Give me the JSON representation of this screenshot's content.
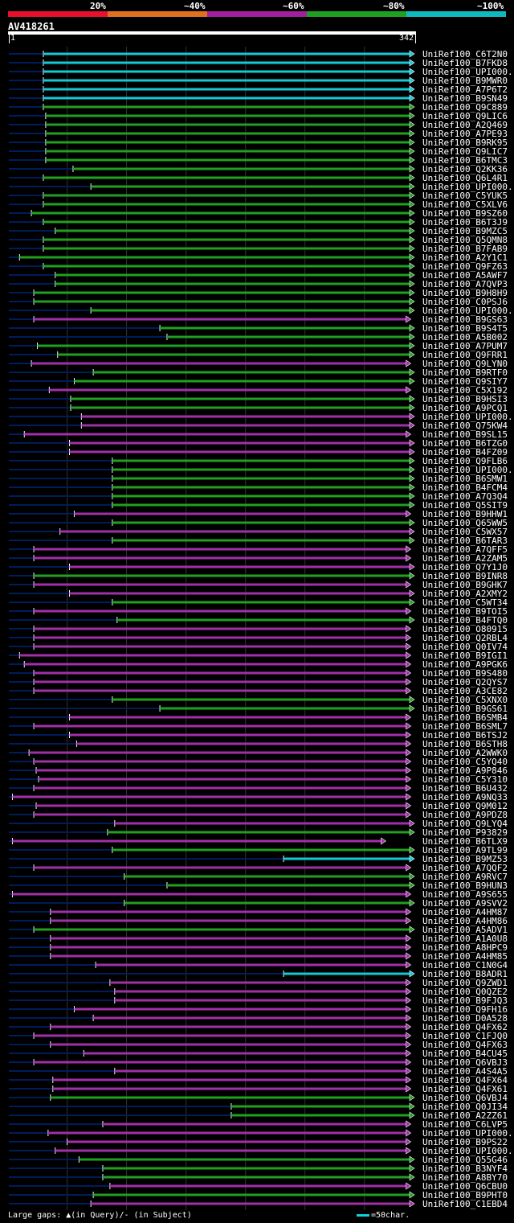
{
  "header": {
    "legend_ticks": [
      "20%",
      "~40%",
      "~60%",
      "~80%",
      "~100%"
    ],
    "legend_colors": [
      "#e8102c",
      "#e07020",
      "#a020a0",
      "#20a020",
      "#10b8c0"
    ],
    "query_id": "AV418261",
    "ruler_start": "1",
    "ruler_end": "342"
  },
  "footer": {
    "gaps_text": "Large gaps: ▲(in Query)/- (in Subject)",
    "scale_text": "=50char."
  },
  "colors": {
    "cyan": "#14c8d4",
    "green": "#20a020",
    "magenta": "#a030a8",
    "gridline": "#333333",
    "prefix": "#001c5a"
  },
  "chart_data": {
    "type": "alignment-overview",
    "query_length": 342,
    "hits": [
      {
        "label": "UniRef100_C6T2N0",
        "start": 30,
        "end": 342,
        "color": "cyan"
      },
      {
        "label": "UniRef100_B7FKD8",
        "start": 30,
        "end": 342,
        "color": "cyan"
      },
      {
        "label": "UniRef100_UPI000..",
        "start": 30,
        "end": 342,
        "color": "cyan"
      },
      {
        "label": "UniRef100_B9MWR0",
        "start": 30,
        "end": 342,
        "color": "cyan"
      },
      {
        "label": "UniRef100_A7P6T2",
        "start": 30,
        "end": 342,
        "color": "cyan"
      },
      {
        "label": "UniRef100_B9SN49",
        "start": 30,
        "end": 342,
        "color": "cyan"
      },
      {
        "label": "UniRef100_Q9C889",
        "start": 30,
        "end": 342,
        "color": "green"
      },
      {
        "label": "UniRef100_Q9LIC6",
        "start": 32,
        "end": 342,
        "color": "green"
      },
      {
        "label": "UniRef100_A2Q469",
        "start": 32,
        "end": 342,
        "color": "green"
      },
      {
        "label": "UniRef100_A7PE93",
        "start": 32,
        "end": 342,
        "color": "green"
      },
      {
        "label": "UniRef100_B9RK95",
        "start": 32,
        "end": 342,
        "color": "green"
      },
      {
        "label": "UniRef100_Q9LIC7",
        "start": 32,
        "end": 342,
        "color": "green"
      },
      {
        "label": "UniRef100_B6TMC3",
        "start": 32,
        "end": 342,
        "color": "green"
      },
      {
        "label": "UniRef100_Q2KK36",
        "start": 55,
        "end": 342,
        "color": "green"
      },
      {
        "label": "UniRef100_Q6L4R1",
        "start": 30,
        "end": 342,
        "color": "green"
      },
      {
        "label": "UniRef100_UPI000..",
        "start": 70,
        "end": 342,
        "color": "green"
      },
      {
        "label": "UniRef100_C5YUK5",
        "start": 30,
        "end": 342,
        "color": "green"
      },
      {
        "label": "UniRef100_C5XLV6",
        "start": 30,
        "end": 342,
        "color": "green"
      },
      {
        "label": "UniRef100_B9SZ60",
        "start": 20,
        "end": 342,
        "color": "green"
      },
      {
        "label": "UniRef100_B6T3J9",
        "start": 30,
        "end": 342,
        "color": "green"
      },
      {
        "label": "UniRef100_B9MZC5",
        "start": 40,
        "end": 342,
        "color": "green"
      },
      {
        "label": "UniRef100_Q5QMN8",
        "start": 30,
        "end": 342,
        "color": "green"
      },
      {
        "label": "UniRef100_B7FAB9",
        "start": 30,
        "end": 342,
        "color": "green"
      },
      {
        "label": "UniRef100_A2Y1C1",
        "start": 10,
        "end": 342,
        "color": "green"
      },
      {
        "label": "UniRef100_Q9FZ63",
        "start": 30,
        "end": 342,
        "color": "green"
      },
      {
        "label": "UniRef100_A5AWF7",
        "start": 40,
        "end": 342,
        "color": "green"
      },
      {
        "label": "UniRef100_A7QVP3",
        "start": 40,
        "end": 342,
        "color": "green"
      },
      {
        "label": "UniRef100_B9H8H9",
        "start": 22,
        "end": 342,
        "color": "green"
      },
      {
        "label": "UniRef100_C0PSJ6",
        "start": 22,
        "end": 342,
        "color": "green"
      },
      {
        "label": "UniRef100_UPI000..",
        "start": 70,
        "end": 342,
        "color": "green"
      },
      {
        "label": "UniRef100_B9GS63",
        "start": 22,
        "end": 339,
        "color": "magenta"
      },
      {
        "label": "UniRef100_B9S4T5",
        "start": 128,
        "end": 342,
        "color": "green"
      },
      {
        "label": "UniRef100_A5B002",
        "start": 134,
        "end": 342,
        "color": "green"
      },
      {
        "label": "UniRef100_A7PUM7",
        "start": 25,
        "end": 342,
        "color": "green"
      },
      {
        "label": "UniRef100_Q9FRR1",
        "start": 42,
        "end": 342,
        "color": "green"
      },
      {
        "label": "UniRef100_Q9LYN0",
        "start": 20,
        "end": 339,
        "color": "magenta"
      },
      {
        "label": "UniRef100_B9RTF0",
        "start": 72,
        "end": 342,
        "color": "green"
      },
      {
        "label": "UniRef100_Q9SIY7",
        "start": 56,
        "end": 342,
        "color": "green"
      },
      {
        "label": "UniRef100_C5X192",
        "start": 35,
        "end": 339,
        "color": "magenta"
      },
      {
        "label": "UniRef100_B9HSI3",
        "start": 53,
        "end": 342,
        "color": "green"
      },
      {
        "label": "UniRef100_A9PCQ1",
        "start": 53,
        "end": 342,
        "color": "green"
      },
      {
        "label": "UniRef100_UPI000..",
        "start": 62,
        "end": 342,
        "color": "magenta"
      },
      {
        "label": "UniRef100_Q75KW4",
        "start": 62,
        "end": 342,
        "color": "magenta"
      },
      {
        "label": "UniRef100_B9SL15",
        "start": 14,
        "end": 339,
        "color": "magenta"
      },
      {
        "label": "UniRef100_B6TZG0",
        "start": 52,
        "end": 342,
        "color": "magenta"
      },
      {
        "label": "UniRef100_B4FZ09",
        "start": 52,
        "end": 342,
        "color": "magenta"
      },
      {
        "label": "UniRef100_Q9FLB6",
        "start": 88,
        "end": 342,
        "color": "green"
      },
      {
        "label": "UniRef100_UPI000..",
        "start": 88,
        "end": 342,
        "color": "green"
      },
      {
        "label": "UniRef100_B6SMW1",
        "start": 88,
        "end": 342,
        "color": "green"
      },
      {
        "label": "UniRef100_B4FCM4",
        "start": 88,
        "end": 342,
        "color": "green"
      },
      {
        "label": "UniRef100_A7Q3Q4",
        "start": 88,
        "end": 342,
        "color": "green"
      },
      {
        "label": "UniRef100_Q5SIT9",
        "start": 88,
        "end": 342,
        "color": "green"
      },
      {
        "label": "UniRef100_B9HHW1",
        "start": 56,
        "end": 339,
        "color": "magenta"
      },
      {
        "label": "UniRef100_Q65WW5",
        "start": 88,
        "end": 342,
        "color": "green"
      },
      {
        "label": "UniRef100_C5WX57",
        "start": 44,
        "end": 342,
        "color": "magenta"
      },
      {
        "label": "UniRef100_B6TAR3",
        "start": 88,
        "end": 342,
        "color": "green"
      },
      {
        "label": "UniRef100_A7QFF5",
        "start": 22,
        "end": 339,
        "color": "magenta"
      },
      {
        "label": "UniRef100_A2ZAM5",
        "start": 22,
        "end": 339,
        "color": "magenta"
      },
      {
        "label": "UniRef100_Q7Y1J0",
        "start": 52,
        "end": 342,
        "color": "magenta"
      },
      {
        "label": "UniRef100_B9INR8",
        "start": 22,
        "end": 342,
        "color": "green"
      },
      {
        "label": "UniRef100_B9GHK7",
        "start": 22,
        "end": 339,
        "color": "magenta"
      },
      {
        "label": "UniRef100_A2XMY2",
        "start": 52,
        "end": 342,
        "color": "magenta"
      },
      {
        "label": "UniRef100_C5WT34",
        "start": 88,
        "end": 342,
        "color": "green"
      },
      {
        "label": "UniRef100_B9TOI5",
        "start": 22,
        "end": 339,
        "color": "magenta"
      },
      {
        "label": "UniRef100_B4FTQ0",
        "start": 92,
        "end": 342,
        "color": "green"
      },
      {
        "label": "UniRef100_O80915",
        "start": 22,
        "end": 339,
        "color": "magenta"
      },
      {
        "label": "UniRef100_Q2RBL4",
        "start": 22,
        "end": 339,
        "color": "magenta"
      },
      {
        "label": "UniRef100_Q0IV74",
        "start": 22,
        "end": 339,
        "color": "magenta"
      },
      {
        "label": "UniRef100_B9IGI1",
        "start": 10,
        "end": 339,
        "color": "magenta"
      },
      {
        "label": "UniRef100_A9PGK6",
        "start": 14,
        "end": 339,
        "color": "magenta"
      },
      {
        "label": "UniRef100_B9S480",
        "start": 22,
        "end": 339,
        "color": "magenta"
      },
      {
        "label": "UniRef100_Q2QYS7",
        "start": 22,
        "end": 339,
        "color": "magenta"
      },
      {
        "label": "UniRef100_A3CE82",
        "start": 22,
        "end": 339,
        "color": "magenta"
      },
      {
        "label": "UniRef100_C5XNX0",
        "start": 88,
        "end": 342,
        "color": "green"
      },
      {
        "label": "UniRef100_B9GS61",
        "start": 128,
        "end": 342,
        "color": "green"
      },
      {
        "label": "UniRef100_B6SMB4",
        "start": 52,
        "end": 339,
        "color": "magenta"
      },
      {
        "label": "UniRef100_B6SML7",
        "start": 22,
        "end": 339,
        "color": "magenta"
      },
      {
        "label": "UniRef100_B6TSJ2",
        "start": 52,
        "end": 339,
        "color": "magenta"
      },
      {
        "label": "UniRef100_B6STH8",
        "start": 58,
        "end": 339,
        "color": "magenta"
      },
      {
        "label": "UniRef100_A2WWK0",
        "start": 18,
        "end": 339,
        "color": "magenta"
      },
      {
        "label": "UniRef100_C5YQ40",
        "start": 22,
        "end": 339,
        "color": "magenta"
      },
      {
        "label": "UniRef100_A9P846",
        "start": 24,
        "end": 339,
        "color": "magenta"
      },
      {
        "label": "UniRef100_C5Y310",
        "start": 26,
        "end": 339,
        "color": "magenta"
      },
      {
        "label": "UniRef100_B6U432",
        "start": 22,
        "end": 339,
        "color": "magenta"
      },
      {
        "label": "UniRef100_A9NQ33",
        "start": 4,
        "end": 339,
        "color": "magenta"
      },
      {
        "label": "UniRef100_Q9M012",
        "start": 24,
        "end": 339,
        "color": "magenta"
      },
      {
        "label": "UniRef100_A9PDZ8",
        "start": 22,
        "end": 339,
        "color": "magenta"
      },
      {
        "label": "UniRef100_Q9LYQ4",
        "start": 90,
        "end": 342,
        "color": "magenta"
      },
      {
        "label": "UniRef100_P93829",
        "start": 84,
        "end": 342,
        "color": "green"
      },
      {
        "label": "UniRef100_B6TLX9",
        "start": 4,
        "end": 318,
        "color": "magenta"
      },
      {
        "label": "UniRef100_A9TL99",
        "start": 88,
        "end": 342,
        "color": "green"
      },
      {
        "label": "UniRef100_B9MZ53",
        "start": 232,
        "end": 342,
        "color": "cyan"
      },
      {
        "label": "UniRef100_A7QQF2",
        "start": 22,
        "end": 339,
        "color": "magenta"
      },
      {
        "label": "UniRef100_A9RVC7",
        "start": 98,
        "end": 342,
        "color": "green"
      },
      {
        "label": "UniRef100_B9HUN3",
        "start": 134,
        "end": 342,
        "color": "green"
      },
      {
        "label": "UniRef100_A9S655",
        "start": 4,
        "end": 339,
        "color": "magenta"
      },
      {
        "label": "UniRef100_A9SVV2",
        "start": 98,
        "end": 342,
        "color": "green"
      },
      {
        "label": "UniRef100_A4HM87",
        "start": 36,
        "end": 339,
        "color": "magenta"
      },
      {
        "label": "UniRef100_A4HM86",
        "start": 36,
        "end": 339,
        "color": "magenta"
      },
      {
        "label": "UniRef100_A5ADV1",
        "start": 22,
        "end": 342,
        "color": "green"
      },
      {
        "label": "UniRef100_A1A0U8",
        "start": 36,
        "end": 339,
        "color": "magenta"
      },
      {
        "label": "UniRef100_A8HPC9",
        "start": 36,
        "end": 339,
        "color": "magenta"
      },
      {
        "label": "UniRef100_A4HM85",
        "start": 36,
        "end": 339,
        "color": "magenta"
      },
      {
        "label": "UniRef100_C1N0G4",
        "start": 74,
        "end": 339,
        "color": "magenta"
      },
      {
        "label": "UniRef100_B8ADR1",
        "start": 232,
        "end": 342,
        "color": "cyan"
      },
      {
        "label": "UniRef100_Q9ZWD1",
        "start": 86,
        "end": 339,
        "color": "magenta"
      },
      {
        "label": "UniRef100_Q0QZE2",
        "start": 90,
        "end": 339,
        "color": "magenta"
      },
      {
        "label": "UniRef100_B9FJQ3",
        "start": 90,
        "end": 339,
        "color": "magenta"
      },
      {
        "label": "UniRef100_Q9FH16",
        "start": 56,
        "end": 339,
        "color": "magenta"
      },
      {
        "label": "UniRef100_D0A528",
        "start": 72,
        "end": 339,
        "color": "magenta"
      },
      {
        "label": "UniRef100_Q4FX62",
        "start": 36,
        "end": 339,
        "color": "magenta"
      },
      {
        "label": "UniRef100_C1FJQ0",
        "start": 22,
        "end": 339,
        "color": "magenta"
      },
      {
        "label": "UniRef100_Q4FX63",
        "start": 36,
        "end": 339,
        "color": "magenta"
      },
      {
        "label": "UniRef100_B4CU45",
        "start": 64,
        "end": 339,
        "color": "magenta"
      },
      {
        "label": "UniRef100_Q6VBJ3",
        "start": 22,
        "end": 339,
        "color": "magenta"
      },
      {
        "label": "UniRef100_A4S4A5",
        "start": 90,
        "end": 339,
        "color": "magenta"
      },
      {
        "label": "UniRef100_Q4FX64",
        "start": 38,
        "end": 339,
        "color": "magenta"
      },
      {
        "label": "UniRef100_Q4FX61",
        "start": 38,
        "end": 339,
        "color": "magenta"
      },
      {
        "label": "UniRef100_Q6VBJ4",
        "start": 36,
        "end": 342,
        "color": "green"
      },
      {
        "label": "UniRef100_Q0JI34",
        "start": 188,
        "end": 342,
        "color": "green"
      },
      {
        "label": "UniRef100_A2ZZ61",
        "start": 188,
        "end": 342,
        "color": "green"
      },
      {
        "label": "UniRef100_C6LVP5",
        "start": 80,
        "end": 339,
        "color": "magenta"
      },
      {
        "label": "UniRef100_UPI000..",
        "start": 34,
        "end": 339,
        "color": "magenta"
      },
      {
        "label": "UniRef100_B9PS22",
        "start": 50,
        "end": 339,
        "color": "magenta"
      },
      {
        "label": "UniRef100_UPI000..",
        "start": 40,
        "end": 339,
        "color": "magenta"
      },
      {
        "label": "UniRef100_Q55G46",
        "start": 60,
        "end": 342,
        "color": "green"
      },
      {
        "label": "UniRef100_B3NYF4",
        "start": 80,
        "end": 342,
        "color": "green"
      },
      {
        "label": "UniRef100_A8BY70",
        "start": 80,
        "end": 342,
        "color": "green"
      },
      {
        "label": "UniRef100_Q6CBU0",
        "start": 86,
        "end": 339,
        "color": "magenta"
      },
      {
        "label": "UniRef100_B9PHT0",
        "start": 72,
        "end": 342,
        "color": "green"
      },
      {
        "label": "UniRef100_C1EBD4",
        "start": 70,
        "end": 342,
        "color": "magenta"
      }
    ]
  }
}
